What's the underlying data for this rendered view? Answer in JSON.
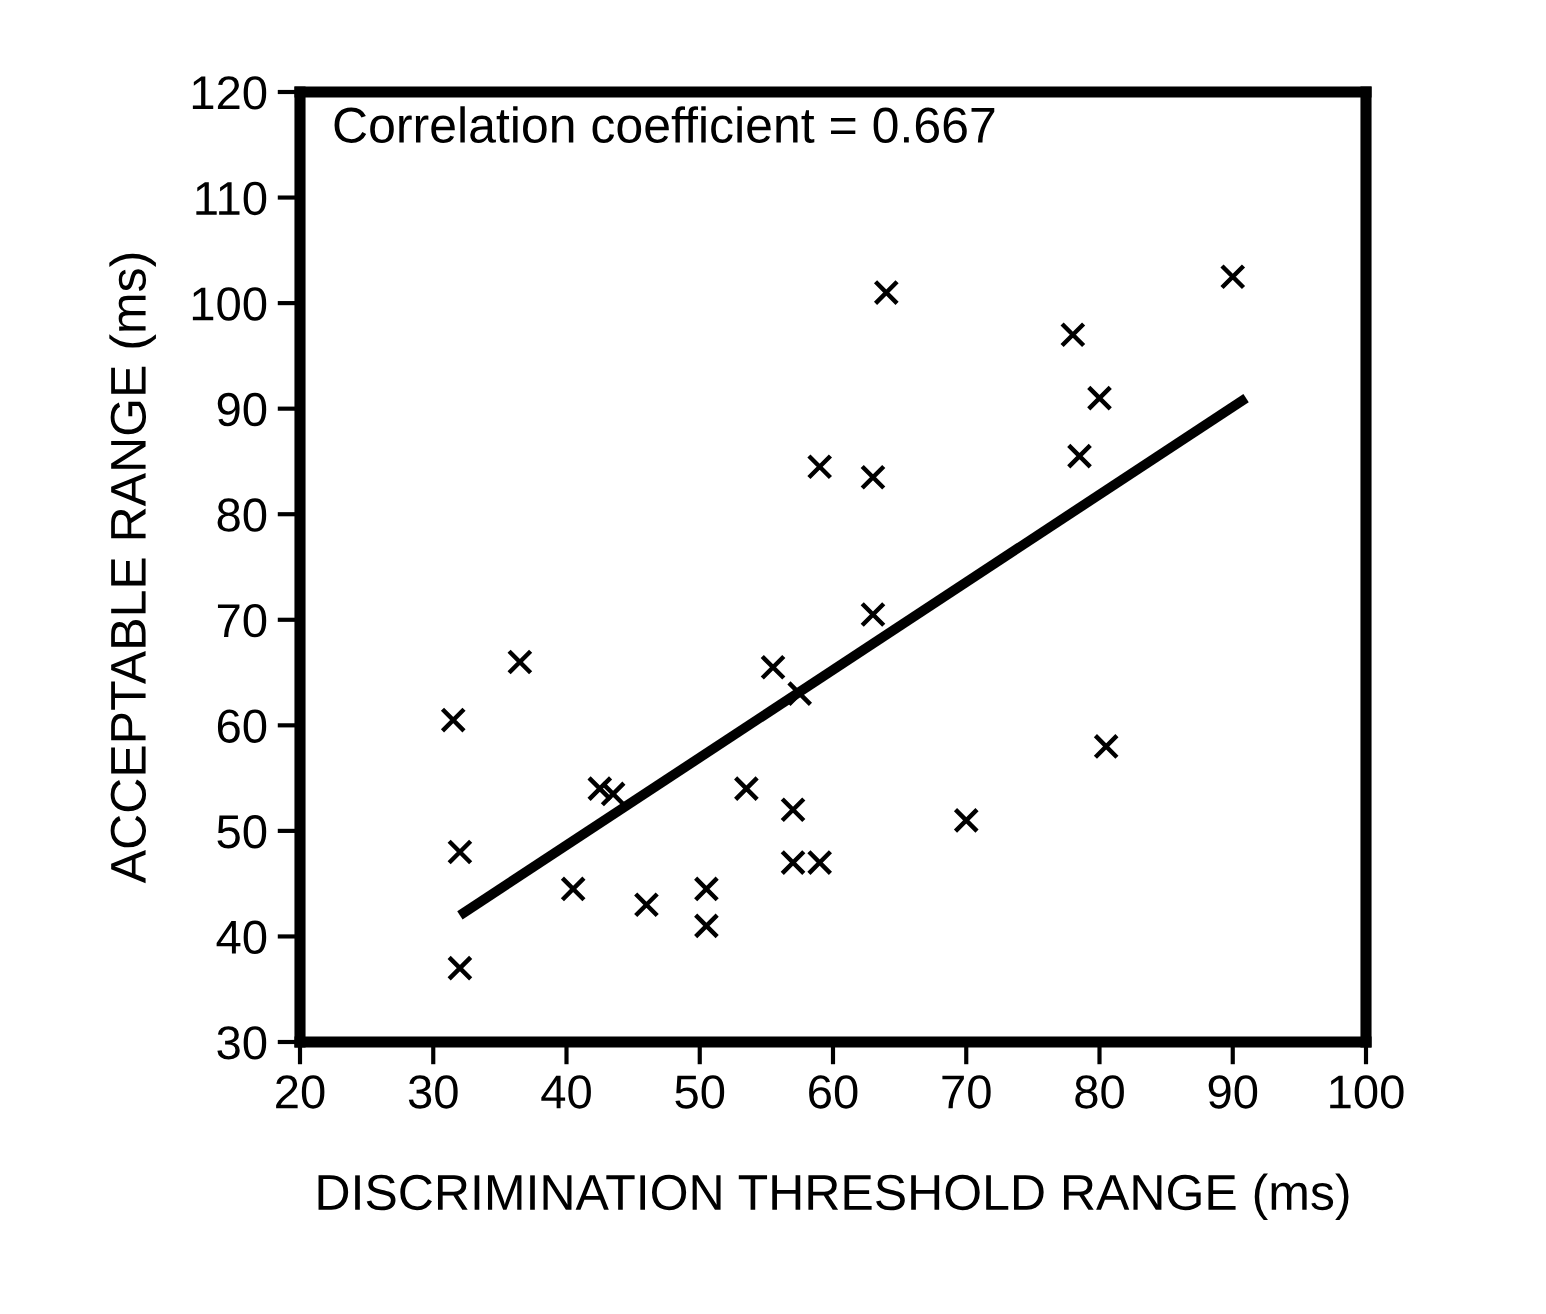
{
  "chart_data": {
    "type": "scatter",
    "xlabel": "DISCRIMINATION THRESHOLD RANGE (ms)",
    "ylabel": "ACCEPTABLE RANGE (ms)",
    "annotations": [
      "Correlation coefficient = 0.667"
    ],
    "xlim": [
      20,
      100
    ],
    "xticks": [
      20,
      30,
      40,
      50,
      60,
      70,
      80,
      90,
      100
    ],
    "ylim": [
      30,
      120
    ],
    "yticks": [
      30,
      40,
      50,
      60,
      70,
      80,
      90,
      100,
      110,
      120
    ],
    "grid": false,
    "legend": false,
    "series": [
      {
        "marker": "cross",
        "color": "#000000",
        "x": [
          31.5,
          32,
          32,
          36.5,
          40.5,
          42.5,
          43.5,
          46,
          50.5,
          50.5,
          53.5,
          55.5,
          57.5,
          57,
          57,
          59,
          59,
          63,
          63,
          64,
          70,
          78,
          78.5,
          80,
          80.5,
          90
        ],
        "values": [
          60.5,
          48,
          37,
          66,
          44.5,
          54,
          53.5,
          43,
          44.5,
          41,
          54,
          65.5,
          63,
          52,
          47,
          47,
          84.5,
          83.5,
          70.5,
          101,
          51,
          97,
          85.5,
          91,
          58,
          102.5
        ]
      },
      {
        "type": "line",
        "marker": "none",
        "color": "#000000",
        "x": [
          32,
          91
        ],
        "values": [
          42,
          91
        ]
      }
    ]
  }
}
